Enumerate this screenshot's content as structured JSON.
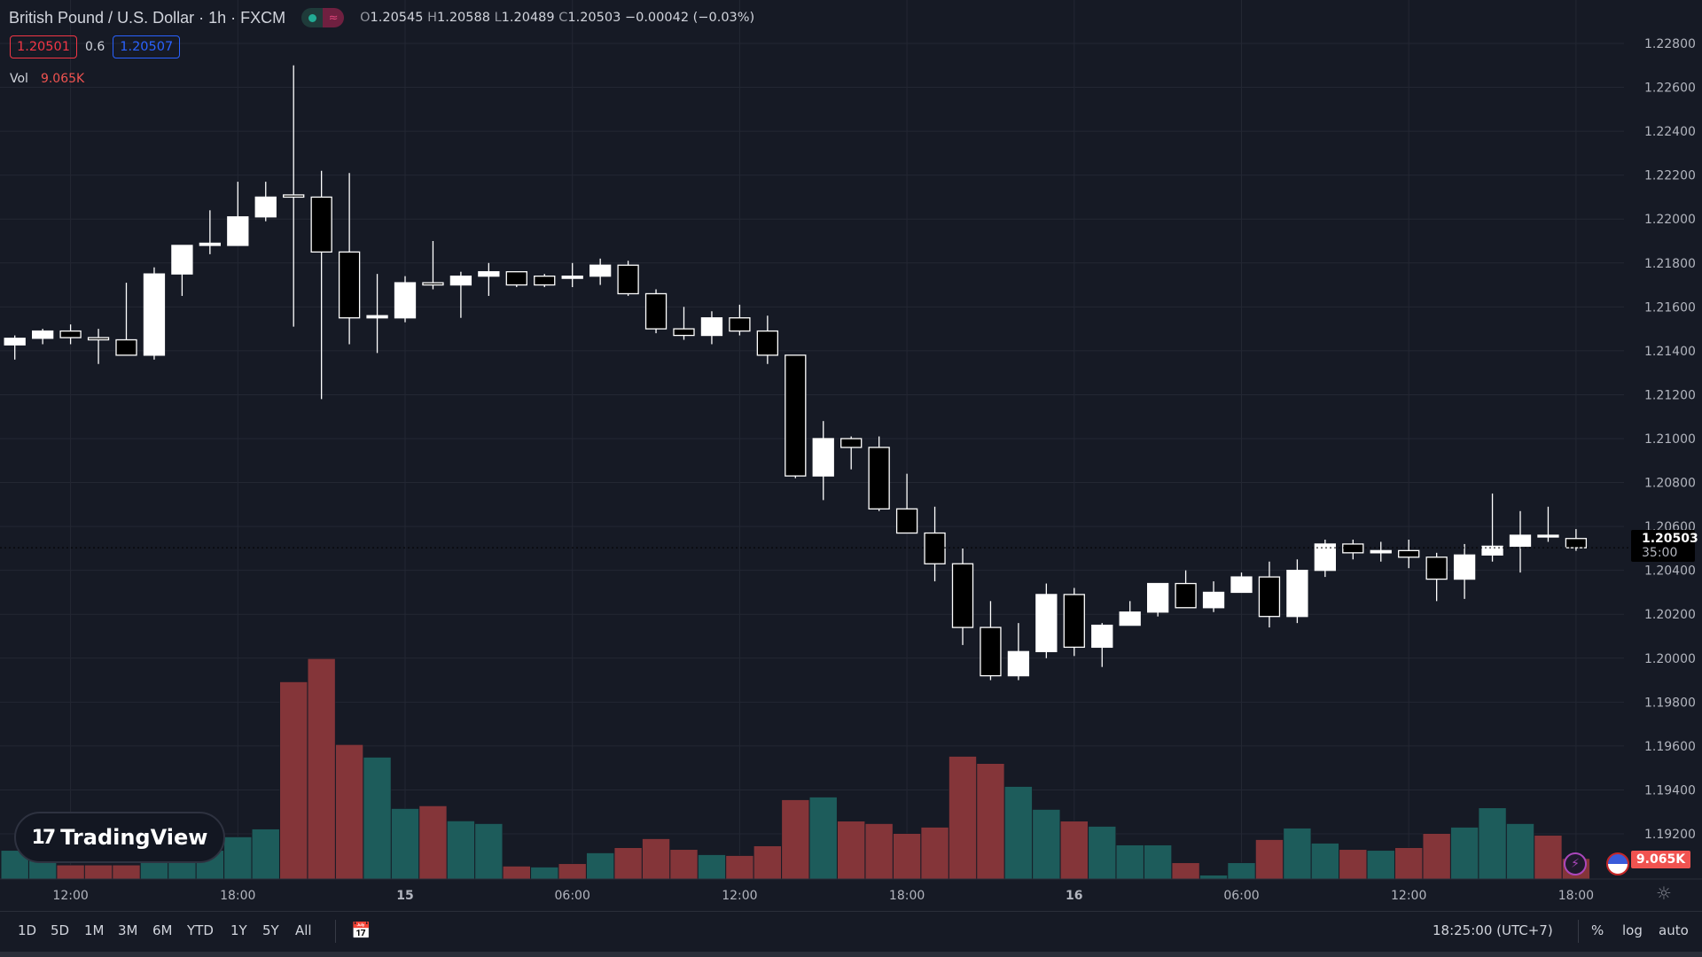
{
  "header": {
    "title": "British Pound / U.S. Dollar · 1h · FXCM",
    "open_label": "O",
    "open": "1.20545",
    "high_label": "H",
    "high": "1.20588",
    "low_label": "L",
    "low": "1.20489",
    "close_label": "C",
    "close": "1.20503",
    "change": "−0.00042 (−0.03%)",
    "market_status_icon": "market-open-dot",
    "data_icon": "≈"
  },
  "quote": {
    "bid": "1.20501",
    "spread": "0.6",
    "ask": "1.20507"
  },
  "volume_legend": {
    "label": "Vol",
    "value": "9.065K"
  },
  "logo": {
    "text": "TradingView",
    "mark": "17"
  },
  "price_axis": {
    "current_price": "1.20503",
    "countdown": "35:00",
    "volume_tag": "9.065K"
  },
  "bottom_toolbar": {
    "ranges": [
      "1D",
      "5D",
      "1M",
      "3M",
      "6M",
      "YTD",
      "1Y",
      "5Y",
      "All"
    ],
    "clock": "18:25:00 (UTC+7)",
    "percent": "%",
    "log": "log",
    "auto": "auto"
  },
  "colors": {
    "background": "#161a25",
    "grid": "#232733",
    "up_volume": "#1d5c5b",
    "down_volume": "#843539",
    "candle_up": "#ffffff",
    "candle_down": "#000000"
  },
  "chart_data": {
    "type": "candlestick",
    "symbol": "GBPUSD",
    "interval": "1h",
    "price_ticks": [
      "1.22800",
      "1.22600",
      "1.22400",
      "1.22200",
      "1.22000",
      "1.21800",
      "1.21600",
      "1.21400",
      "1.21200",
      "1.21000",
      "1.20800",
      "1.20600",
      "1.20400",
      "1.20200",
      "1.20000",
      "1.19800",
      "1.19600",
      "1.19400",
      "1.19200"
    ],
    "ylim": [
      1.192,
      1.228
    ],
    "time_labels": [
      {
        "index": 2,
        "label": "12:00"
      },
      {
        "index": 8,
        "label": "18:00"
      },
      {
        "index": 14,
        "label": "15"
      },
      {
        "index": 20,
        "label": "06:00"
      },
      {
        "index": 26,
        "label": "12:00"
      },
      {
        "index": 32,
        "label": "18:00"
      },
      {
        "index": 38,
        "label": "16"
      },
      {
        "index": 44,
        "label": "06:00"
      },
      {
        "index": 50,
        "label": "12:00"
      },
      {
        "index": 56,
        "label": "18:00"
      }
    ],
    "volume_unit": "K",
    "candles": [
      [
        1.21427,
        1.2147,
        1.2136,
        1.21457,
        12.7,
        "up"
      ],
      [
        1.21457,
        1.215,
        1.2143,
        1.2149,
        15.4,
        "up"
      ],
      [
        1.2149,
        1.2152,
        1.2143,
        1.2146,
        6.2,
        "down"
      ],
      [
        1.2146,
        1.215,
        1.2134,
        1.2145,
        6.2,
        "down"
      ],
      [
        1.2145,
        1.2171,
        1.2138,
        1.2138,
        6.2,
        "down"
      ],
      [
        1.2138,
        1.2178,
        1.2136,
        1.2175,
        7.5,
        "up"
      ],
      [
        1.2175,
        1.2188,
        1.2165,
        1.2188,
        7.5,
        "up"
      ],
      [
        1.2188,
        1.2204,
        1.2184,
        1.2189,
        12.7,
        "up"
      ],
      [
        1.2188,
        1.2217,
        1.2188,
        1.2201,
        18.7,
        "up"
      ],
      [
        1.2201,
        1.2217,
        1.2199,
        1.221,
        22.2,
        "up"
      ],
      [
        1.2211,
        1.227,
        1.2151,
        1.221,
        87.6,
        "down"
      ],
      [
        1.221,
        1.2222,
        1.2118,
        1.2185,
        97.9,
        "down"
      ],
      [
        1.2185,
        1.2221,
        1.2143,
        1.2155,
        59.7,
        "down"
      ],
      [
        1.2155,
        1.2175,
        1.2139,
        1.2156,
        54.1,
        "up"
      ],
      [
        1.2155,
        1.2174,
        1.2153,
        1.2171,
        31.3,
        "up"
      ],
      [
        1.2171,
        1.219,
        1.2168,
        1.217,
        32.5,
        "down"
      ],
      [
        1.217,
        1.2176,
        1.2155,
        1.2174,
        25.8,
        "up"
      ],
      [
        1.2174,
        1.218,
        1.2165,
        1.2176,
        24.6,
        "up"
      ],
      [
        1.2176,
        1.2176,
        1.2169,
        1.217,
        5.7,
        "down"
      ],
      [
        1.2174,
        1.2175,
        1.2169,
        1.217,
        5.3,
        "up"
      ],
      [
        1.2173,
        1.218,
        1.2169,
        1.2174,
        6.8,
        "down"
      ],
      [
        1.2174,
        1.2182,
        1.217,
        1.2179,
        11.6,
        "up"
      ],
      [
        1.2179,
        1.2181,
        1.2165,
        1.2166,
        13.9,
        "down"
      ],
      [
        1.2166,
        1.2168,
        1.2148,
        1.215,
        17.9,
        "down"
      ],
      [
        1.215,
        1.216,
        1.2145,
        1.2147,
        13.1,
        "down"
      ],
      [
        1.2147,
        1.2158,
        1.2143,
        1.2155,
        10.8,
        "up"
      ],
      [
        1.2155,
        1.2161,
        1.2147,
        1.2149,
        10.4,
        "down"
      ],
      [
        1.2149,
        1.2156,
        1.2134,
        1.2138,
        14.7,
        "down"
      ],
      [
        1.2138,
        1.2138,
        1.2082,
        1.2083,
        35.2,
        "down"
      ],
      [
        1.2083,
        1.2108,
        1.2072,
        1.21,
        36.4,
        "up"
      ],
      [
        1.21,
        1.2101,
        1.2086,
        1.2096,
        25.7,
        "down"
      ],
      [
        1.2096,
        1.2101,
        1.2067,
        1.2068,
        24.6,
        "down"
      ],
      [
        1.2068,
        1.2084,
        1.2057,
        1.2057,
        20.2,
        "down"
      ],
      [
        1.2057,
        1.2069,
        1.2035,
        1.2043,
        23.0,
        "down"
      ],
      [
        1.2043,
        1.205,
        1.2006,
        1.2014,
        54.5,
        "down"
      ],
      [
        1.2014,
        1.2026,
        1.199,
        1.1992,
        51.3,
        "down"
      ],
      [
        1.1992,
        1.2016,
        1.199,
        1.2003,
        41.1,
        "up"
      ],
      [
        1.2003,
        1.2034,
        1.2,
        1.2029,
        30.9,
        "up"
      ],
      [
        1.2029,
        1.2032,
        1.2001,
        1.2005,
        25.7,
        "down"
      ],
      [
        1.2005,
        1.2016,
        1.1996,
        1.2015,
        23.4,
        "up"
      ],
      [
        1.2015,
        1.2026,
        1.2015,
        1.2021,
        15.1,
        "up"
      ],
      [
        1.2021,
        1.2034,
        1.2019,
        1.2034,
        15.1,
        "up"
      ],
      [
        1.2034,
        1.204,
        1.2023,
        1.2023,
        7.2,
        "down"
      ],
      [
        1.2023,
        1.2035,
        1.2021,
        1.203,
        1.7,
        "up"
      ],
      [
        1.203,
        1.2039,
        1.203,
        1.2037,
        7.2,
        "up"
      ],
      [
        1.2037,
        1.2044,
        1.2014,
        1.2019,
        17.5,
        "down"
      ],
      [
        1.2019,
        1.2045,
        1.2016,
        1.204,
        22.6,
        "up"
      ],
      [
        1.204,
        1.2054,
        1.2037,
        1.2052,
        15.9,
        "up"
      ],
      [
        1.2052,
        1.2054,
        1.2045,
        1.2048,
        13.1,
        "down"
      ],
      [
        1.2048,
        1.2053,
        1.2044,
        1.2049,
        12.7,
        "up"
      ],
      [
        1.2049,
        1.2054,
        1.2041,
        1.2046,
        13.9,
        "down"
      ],
      [
        1.2046,
        1.2048,
        1.2026,
        1.2036,
        20.2,
        "down"
      ],
      [
        1.2036,
        1.2052,
        1.2027,
        1.2047,
        23.0,
        "up"
      ],
      [
        1.2047,
        1.2075,
        1.2044,
        1.2051,
        31.6,
        "up"
      ],
      [
        1.2051,
        1.2067,
        1.2039,
        1.2056,
        24.6,
        "up"
      ],
      [
        1.2056,
        1.2069,
        1.2053,
        1.2056,
        19.4,
        "down"
      ],
      [
        1.20545,
        1.20588,
        1.20489,
        1.20503,
        9.065,
        "down"
      ]
    ]
  }
}
